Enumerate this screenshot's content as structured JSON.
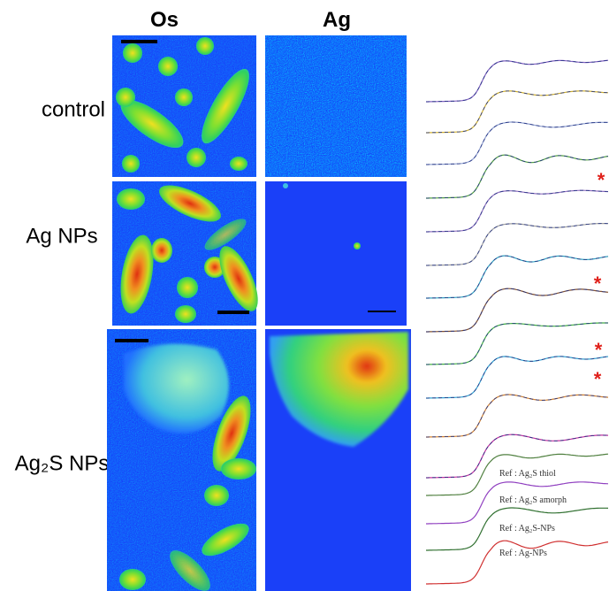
{
  "columns": [
    "Os",
    "Ag"
  ],
  "rows": [
    "control",
    "Ag NPs",
    "Ag₂S NPs"
  ],
  "markers": [
    "*",
    "*",
    "*",
    "*"
  ],
  "references": [
    "Ref : Ag₂S thiol",
    "Ref : Ag₂S amorph",
    "Ref : Ag₂S-NPs",
    "Ref : Ag-NPs"
  ]
}
